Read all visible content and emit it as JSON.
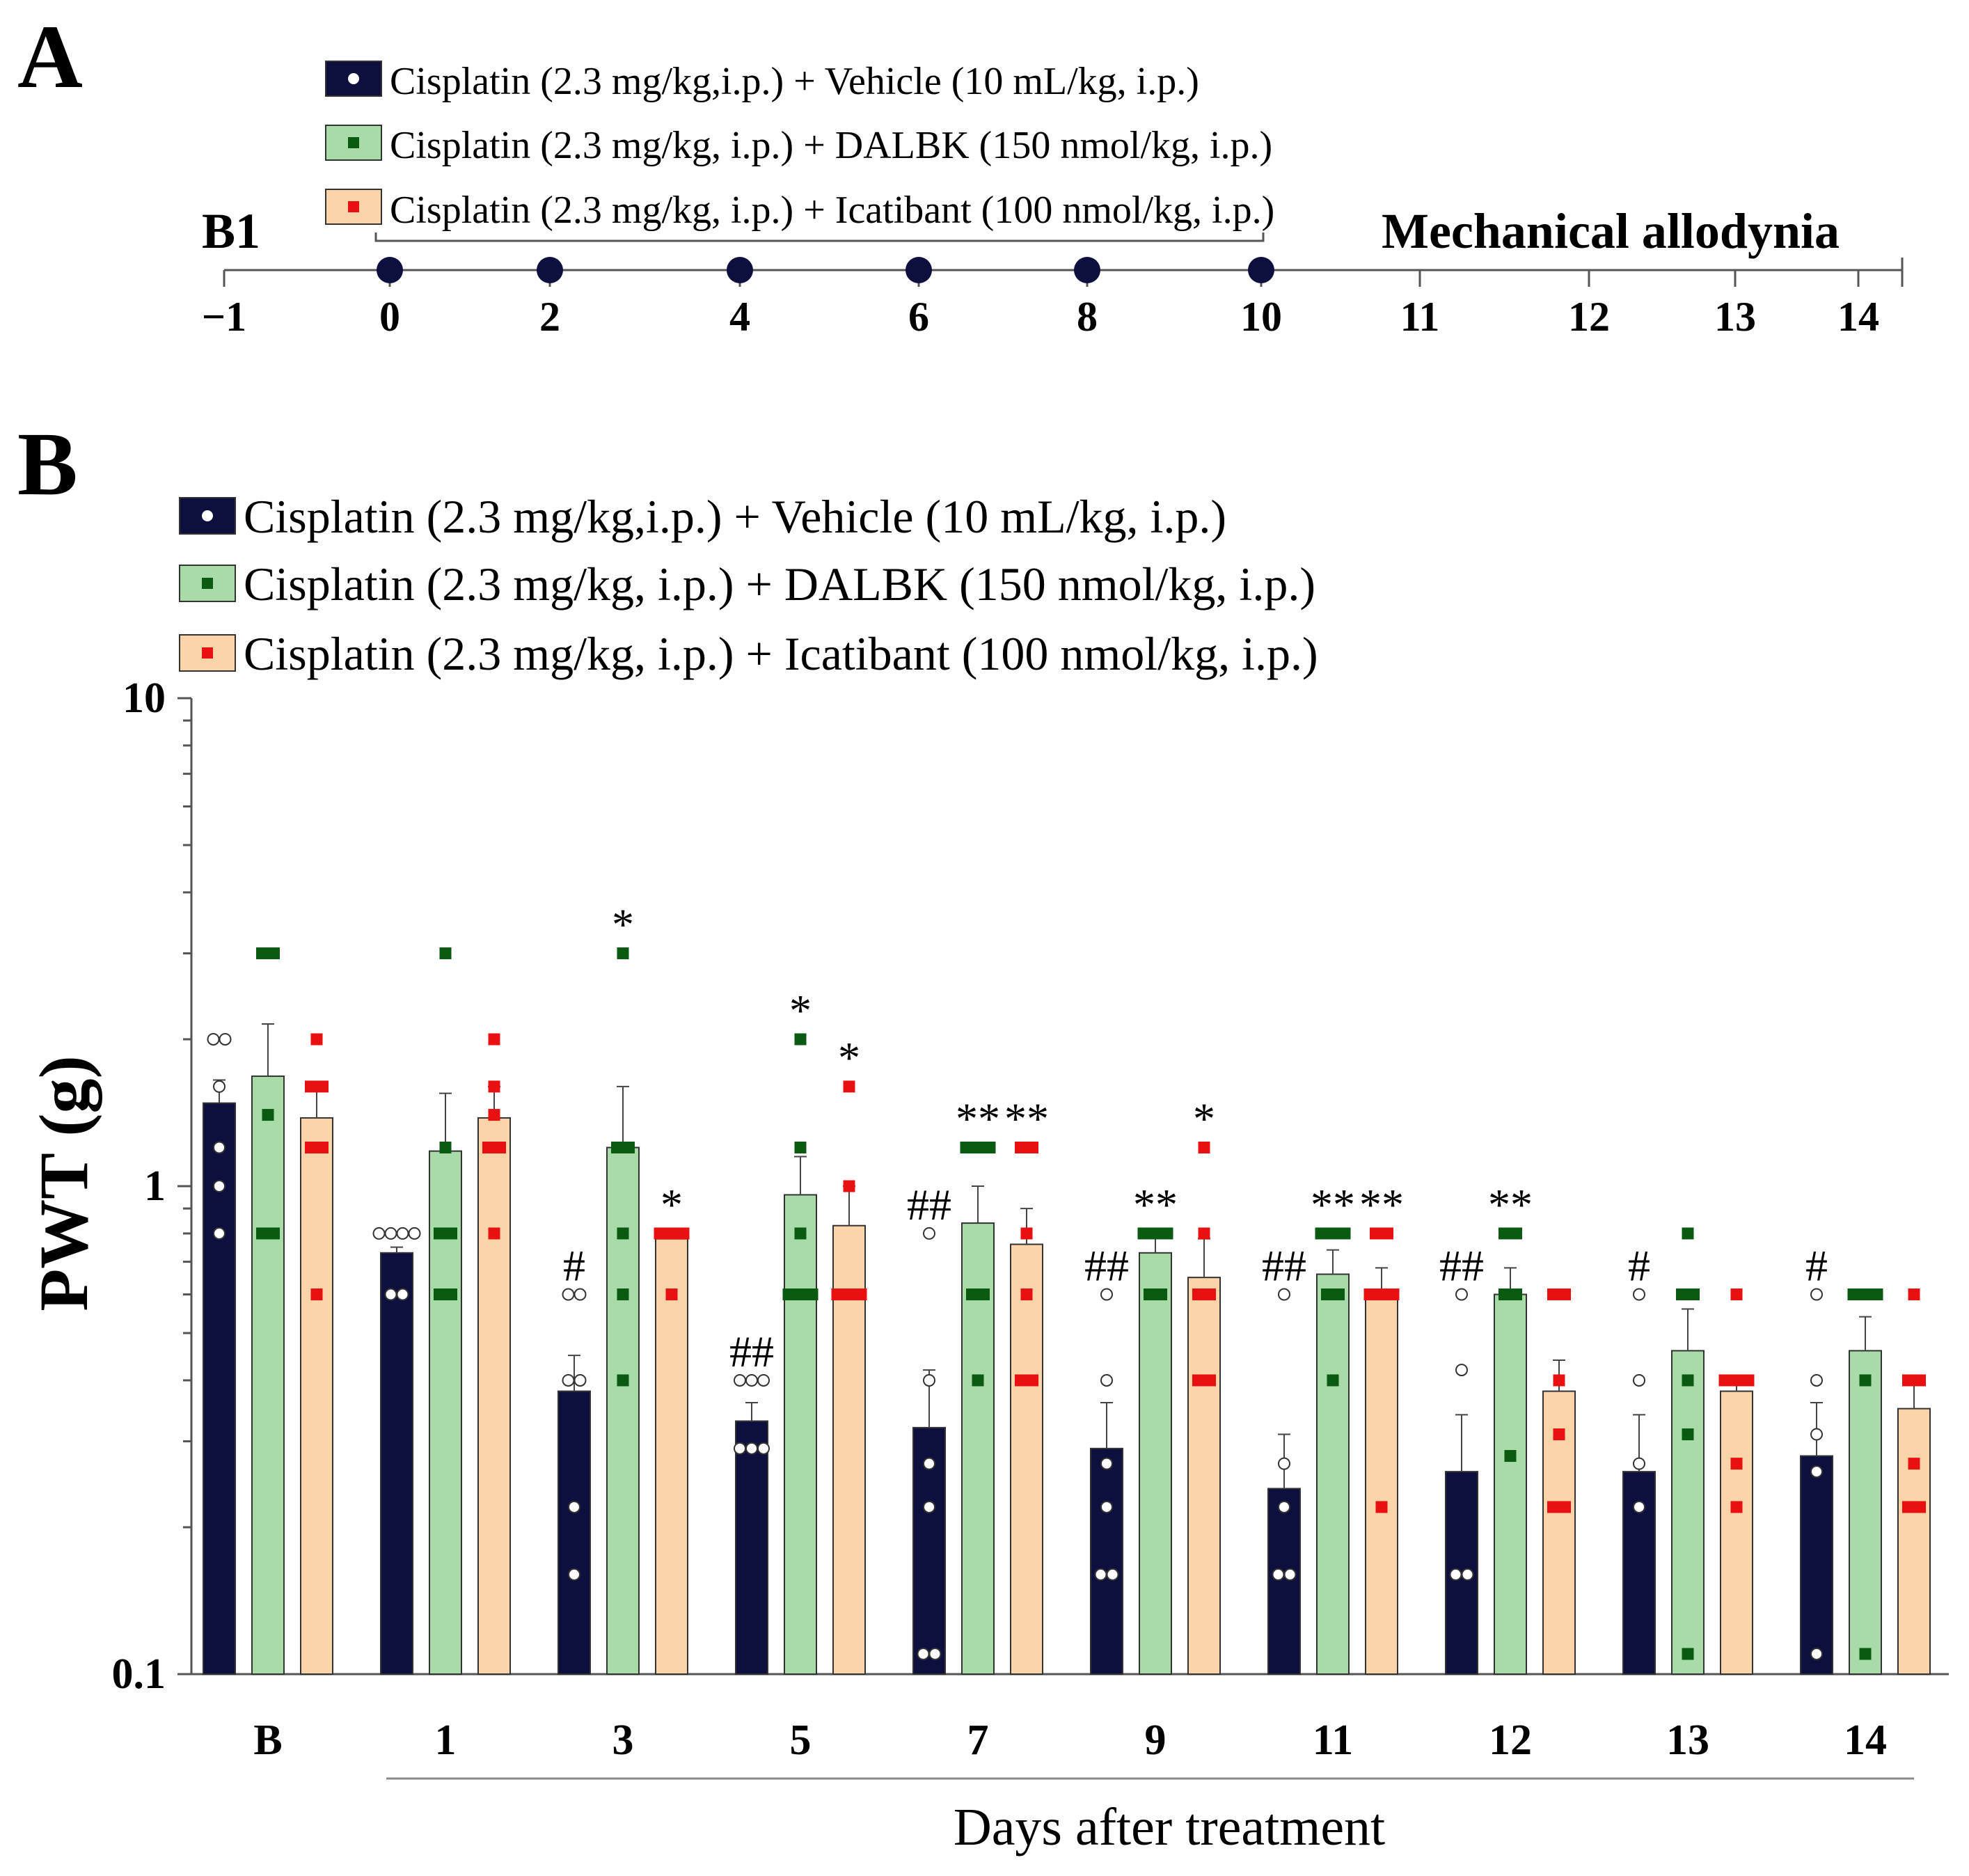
{
  "panel_a": {
    "letter": "A",
    "legend": [
      {
        "label": "Cisplatin (2.3 mg/kg,i.p.) + Vehicle (10 mL/kg, i.p.)",
        "color": "#0d0f3f",
        "marker": "#ffffff",
        "marker_shape": "circle"
      },
      {
        "label": "Cisplatin (2.3 mg/kg, i.p.) + DALBK (150 nmol/kg, i.p.)",
        "color": "#a8dba8",
        "marker": "#0b5a12",
        "marker_shape": "square"
      },
      {
        "label": "Cisplatin (2.3 mg/kg, i.p.) + Icatibant (100 nmol/kg, i.p.)",
        "color": "#fcd4aa",
        "marker": "#e81010",
        "marker_shape": "square"
      }
    ],
    "baseline_label": "B1",
    "test_label": "Mechanical allodynia",
    "timeline": {
      "ticks": [
        "−1",
        "0",
        "2",
        "4",
        "6",
        "8",
        "10",
        "11",
        "12",
        "13",
        "14"
      ],
      "dose_days": [
        "0",
        "2",
        "4",
        "6",
        "8",
        "10"
      ]
    }
  },
  "panel_b": {
    "letter": "B",
    "legend": [
      {
        "label": "Cisplatin (2.3 mg/kg,i.p.) + Vehicle (10 mL/kg, i.p.)"
      },
      {
        "label": "Cisplatin (2.3 mg/kg, i.p.) + DALBK (150 nmol/kg, i.p.)"
      },
      {
        "label": "Cisplatin (2.3 mg/kg, i.p.) + Icatibant (100 nmol/kg, i.p.)"
      }
    ]
  },
  "chart_data": {
    "type": "bar",
    "title": "",
    "xlabel": "Days after treatment",
    "ylabel": "PWT (g)",
    "yscale": "log",
    "ylim": [
      0.1,
      10
    ],
    "yticks": [
      "0.1",
      "1",
      "10"
    ],
    "categories": [
      "B",
      "1",
      "3",
      "5",
      "7",
      "9",
      "11",
      "12",
      "13",
      "14"
    ],
    "series": [
      {
        "name": "Cisplatin (2.3 mg/kg,i.p.) + Vehicle (10 mL/kg, i.p.)",
        "color": "#0d0f3f",
        "values": [
          1.48,
          0.73,
          0.38,
          0.33,
          0.32,
          0.29,
          0.24,
          0.26,
          0.26,
          0.28
        ],
        "errors": [
          1.65,
          0.75,
          0.45,
          0.36,
          0.42,
          0.36,
          0.31,
          0.34,
          0.34,
          0.36
        ],
        "points": [
          [
            0.8,
            1.0,
            1.2,
            1.6,
            2.0,
            2.0
          ],
          [
            0.6,
            0.6,
            0.8,
            0.8,
            0.8,
            0.8
          ],
          [
            0.16,
            0.22,
            0.4,
            0.4,
            0.6,
            0.6
          ],
          [
            0.29,
            0.29,
            0.29,
            0.4,
            0.4,
            0.4
          ],
          [
            0.11,
            0.11,
            0.22,
            0.27,
            0.4,
            0.8
          ],
          [
            0.16,
            0.16,
            0.22,
            0.27,
            0.4,
            0.6
          ],
          [
            0.16,
            0.16,
            0.22,
            0.27,
            0.6
          ],
          [
            0.16,
            0.16,
            0.42,
            0.6
          ],
          [
            0.22,
            0.27,
            0.4,
            0.6
          ],
          [
            0.11,
            0.26,
            0.31,
            0.4,
            0.6
          ]
        ]
      },
      {
        "name": "Cisplatin (2.3 mg/kg, i.p.) + DALBK (150 nmol/kg, i.p.)",
        "color": "#a8dba8",
        "values": [
          1.68,
          1.18,
          1.2,
          0.96,
          0.84,
          0.73,
          0.66,
          0.6,
          0.46,
          0.46
        ],
        "errors": [
          2.15,
          1.55,
          1.6,
          1.15,
          1.0,
          0.8,
          0.74,
          0.68,
          0.56,
          0.54
        ],
        "points": [
          [
            0.8,
            0.8,
            1.4,
            3.0,
            3.0
          ],
          [
            0.6,
            0.6,
            0.8,
            0.8,
            1.2,
            3.0
          ],
          [
            0.4,
            0.6,
            0.8,
            1.2,
            1.2,
            3.0
          ],
          [
            0.6,
            0.6,
            0.6,
            0.8,
            1.2,
            2.0
          ],
          [
            0.4,
            0.6,
            0.6,
            1.2,
            1.2,
            1.2
          ],
          [
            0.6,
            0.6,
            0.8,
            0.8,
            0.8
          ],
          [
            0.4,
            0.6,
            0.6,
            0.8,
            0.8,
            0.8
          ],
          [
            0.28,
            0.6,
            0.6,
            0.8,
            0.8
          ],
          [
            0.11,
            0.31,
            0.4,
            0.6,
            0.6,
            0.8
          ],
          [
            0.11,
            0.4,
            0.6,
            0.6,
            0.6
          ]
        ]
      },
      {
        "name": "Cisplatin (2.3 mg/kg, i.p.) + Icatibant (100 nmol/kg, i.p.)",
        "color": "#fcd4aa",
        "values": [
          1.38,
          1.38,
          0.78,
          0.83,
          0.76,
          0.65,
          0.6,
          0.38,
          0.38,
          0.35
        ],
        "errors": [
          1.6,
          1.6,
          0.8,
          1.0,
          0.9,
          0.78,
          0.68,
          0.44,
          0.41,
          0.4
        ],
        "points": [
          [
            0.6,
            1.2,
            1.2,
            1.6,
            1.6,
            2.0
          ],
          [
            0.8,
            1.2,
            1.2,
            1.4,
            1.6,
            2.0
          ],
          [
            0.6,
            0.8,
            0.8,
            0.8
          ],
          [
            0.6,
            0.6,
            0.6,
            1.0,
            1.6
          ],
          [
            0.4,
            0.4,
            0.6,
            0.8,
            1.2,
            1.2
          ],
          [
            0.4,
            0.4,
            0.6,
            0.6,
            0.8,
            1.2
          ],
          [
            0.22,
            0.6,
            0.6,
            0.6,
            0.8,
            0.8
          ],
          [
            0.22,
            0.22,
            0.31,
            0.4,
            0.6,
            0.6
          ],
          [
            0.22,
            0.27,
            0.4,
            0.4,
            0.4,
            0.6
          ],
          [
            0.22,
            0.22,
            0.27,
            0.4,
            0.4,
            0.6
          ]
        ]
      }
    ],
    "annotations": [
      {
        "category": "1",
        "series": 0,
        "text": ""
      },
      {
        "category": "3",
        "series": 0,
        "text": "#"
      },
      {
        "category": "3",
        "series": 1,
        "text": "*"
      },
      {
        "category": "3",
        "series": 2,
        "text": "*"
      },
      {
        "category": "5",
        "series": 0,
        "text": "##"
      },
      {
        "category": "5",
        "series": 1,
        "text": "*"
      },
      {
        "category": "5",
        "series": 2,
        "text": "*"
      },
      {
        "category": "7",
        "series": 0,
        "text": "##"
      },
      {
        "category": "7",
        "series": 1,
        "text": "**"
      },
      {
        "category": "7",
        "series": 2,
        "text": "**"
      },
      {
        "category": "9",
        "series": 0,
        "text": "##"
      },
      {
        "category": "9",
        "series": 1,
        "text": "**"
      },
      {
        "category": "9",
        "series": 2,
        "text": "*"
      },
      {
        "category": "11",
        "series": 0,
        "text": "##"
      },
      {
        "category": "11",
        "series": 1,
        "text": "**"
      },
      {
        "category": "11",
        "series": 2,
        "text": "**"
      },
      {
        "category": "12",
        "series": 0,
        "text": "##"
      },
      {
        "category": "12",
        "series": 1,
        "text": "**"
      },
      {
        "category": "13",
        "series": 0,
        "text": "#"
      },
      {
        "category": "14",
        "series": 0,
        "text": "#"
      }
    ]
  }
}
